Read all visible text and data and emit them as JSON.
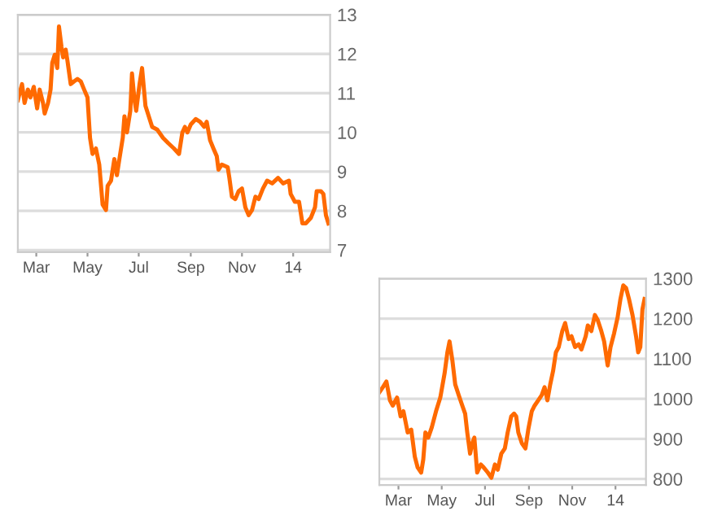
{
  "chart_data": [
    {
      "type": "line",
      "x": [
        "2013-02-07",
        "2013-02-12",
        "2013-02-15",
        "2013-02-19",
        "2013-02-22",
        "2013-02-26",
        "2013-03-02",
        "2013-03-05",
        "2013-03-09",
        "2013-03-11",
        "2013-03-15",
        "2013-03-18",
        "2013-03-20",
        "2013-03-23",
        "2013-03-26",
        "2013-03-28",
        "2013-03-31",
        "2013-04-02",
        "2013-04-05",
        "2013-04-07",
        "2013-04-11",
        "2013-04-15",
        "2013-04-19",
        "2013-04-23",
        "2013-04-27",
        "2013-05-01",
        "2013-05-04",
        "2013-05-07",
        "2013-05-11",
        "2013-05-15",
        "2013-05-19",
        "2013-05-23",
        "2013-05-25",
        "2013-05-29",
        "2013-06-02",
        "2013-06-05",
        "2013-06-08",
        "2013-06-12",
        "2013-06-14",
        "2013-06-17",
        "2013-06-21",
        "2013-06-23",
        "2013-06-26",
        "2013-06-28",
        "2013-07-02",
        "2013-07-05",
        "2013-07-09",
        "2013-07-13",
        "2013-07-17",
        "2013-07-23",
        "2013-07-30",
        "2013-08-05",
        "2013-08-12",
        "2013-08-18",
        "2013-08-22",
        "2013-08-25",
        "2013-08-28",
        "2013-09-01",
        "2013-09-07",
        "2013-09-12",
        "2013-09-17",
        "2013-09-20",
        "2013-09-24",
        "2013-09-28",
        "2013-10-02",
        "2013-10-04",
        "2013-10-08",
        "2013-10-15",
        "2013-10-17",
        "2013-10-20",
        "2013-10-24",
        "2013-10-28",
        "2013-11-01",
        "2013-11-05",
        "2013-11-09",
        "2013-11-13",
        "2013-11-17",
        "2013-11-21",
        "2013-11-26",
        "2013-12-01",
        "2013-12-07",
        "2013-12-14",
        "2013-12-20",
        "2013-12-27",
        "2013-12-29",
        "2014-01-03",
        "2014-01-08",
        "2014-01-12",
        "2014-01-16",
        "2014-01-22",
        "2014-01-27",
        "2014-01-29",
        "2014-02-03",
        "2014-02-06",
        "2014-02-09",
        "2014-02-12"
      ],
      "series": [
        {
          "color": "#ff6a00",
          "values": [
            10.82,
            11.23,
            10.75,
            11.09,
            10.89,
            11.16,
            10.61,
            11.09,
            10.75,
            10.48,
            10.75,
            11.09,
            11.77,
            11.98,
            11.64,
            12.7,
            12.18,
            11.91,
            12.11,
            11.84,
            11.23,
            11.3,
            11.36,
            11.3,
            11.09,
            10.89,
            9.86,
            9.45,
            9.59,
            9.18,
            8.16,
            8.02,
            8.64,
            8.77,
            9.32,
            8.91,
            9.32,
            9.86,
            10.41,
            10.0,
            10.55,
            11.5,
            10.82,
            10.55,
            11.23,
            11.64,
            10.68,
            10.41,
            10.14,
            10.07,
            9.86,
            9.73,
            9.59,
            9.45,
            10.0,
            10.14,
            10.0,
            10.2,
            10.34,
            10.27,
            10.14,
            10.27,
            9.8,
            9.59,
            9.39,
            9.05,
            9.18,
            9.11,
            8.84,
            8.36,
            8.3,
            8.5,
            8.57,
            8.09,
            7.89,
            8.02,
            8.36,
            8.3,
            8.57,
            8.77,
            8.7,
            8.84,
            8.7,
            8.77,
            8.43,
            8.23,
            8.23,
            7.68,
            7.68,
            7.82,
            8.09,
            8.5,
            8.5,
            8.43,
            7.89,
            7.68
          ]
        }
      ],
      "xlim": [
        "2013-02-07",
        "2014-02-14"
      ],
      "xticks": [
        {
          "value": "2013-03-01",
          "label": "Mar"
        },
        {
          "value": "2013-05-01",
          "label": "May"
        },
        {
          "value": "2013-07-01",
          "label": "Jul"
        },
        {
          "value": "2013-09-01",
          "label": "Sep"
        },
        {
          "value": "2013-11-01",
          "label": "Nov"
        },
        {
          "value": "2014-01-01",
          "label": "14"
        }
      ],
      "ylim": [
        6.95,
        13.0
      ],
      "yticks": [
        7,
        8,
        9,
        10,
        11,
        12,
        13
      ],
      "grid": "y",
      "line_style": "solid"
    },
    {
      "type": "line",
      "x": [
        "2013-02-02",
        "2013-02-07",
        "2013-02-12",
        "2013-02-17",
        "2013-02-21",
        "2013-02-27",
        "2013-03-04",
        "2013-03-08",
        "2013-03-14",
        "2013-03-19",
        "2013-03-24",
        "2013-03-28",
        "2013-04-02",
        "2013-04-05",
        "2013-04-08",
        "2013-04-12",
        "2013-04-17",
        "2013-04-23",
        "2013-04-29",
        "2013-05-05",
        "2013-05-09",
        "2013-05-12",
        "2013-05-16",
        "2013-05-20",
        "2013-05-25",
        "2013-05-30",
        "2013-06-03",
        "2013-06-06",
        "2013-06-10",
        "2013-06-13",
        "2013-06-16",
        "2013-06-20",
        "2013-06-25",
        "2013-06-29",
        "2013-07-05",
        "2013-07-10",
        "2013-07-15",
        "2013-07-19",
        "2013-07-24",
        "2013-07-29",
        "2013-08-02",
        "2013-08-07",
        "2013-08-11",
        "2013-08-14",
        "2013-08-17",
        "2013-08-22",
        "2013-08-27",
        "2013-08-31",
        "2013-09-05",
        "2013-09-09",
        "2013-09-14",
        "2013-09-19",
        "2013-09-23",
        "2013-09-27",
        "2013-10-01",
        "2013-10-05",
        "2013-10-09",
        "2013-10-13",
        "2013-10-18",
        "2013-10-22",
        "2013-10-27",
        "2013-10-31",
        "2013-11-05",
        "2013-11-10",
        "2013-11-14",
        "2013-11-20",
        "2013-11-23",
        "2013-11-28",
        "2013-12-03",
        "2013-12-07",
        "2013-12-12",
        "2013-12-16",
        "2013-12-21",
        "2013-12-25",
        "2013-12-30",
        "2014-01-04",
        "2014-01-08",
        "2014-01-12",
        "2014-01-16",
        "2014-01-20",
        "2014-01-25",
        "2014-01-30",
        "2014-02-02",
        "2014-02-05",
        "2014-02-08",
        "2014-02-11"
      ],
      "series": [
        {
          "color": "#ff6a00",
          "values": [
            1016,
            1029,
            1043,
            996,
            983,
            1003,
            956,
            969,
            916,
            923,
            856,
            829,
            816,
            849,
            916,
            903,
            929,
            969,
            1003,
            1063,
            1116,
            1143,
            1096,
            1036,
            1009,
            983,
            963,
            916,
            863,
            889,
            903,
            816,
            836,
            829,
            816,
            803,
            836,
            823,
            863,
            876,
            916,
            956,
            963,
            956,
            916,
            889,
            876,
            923,
            969,
            983,
            996,
            1009,
            1029,
            996,
            1036,
            1069,
            1116,
            1129,
            1169,
            1189,
            1149,
            1156,
            1129,
            1136,
            1123,
            1156,
            1183,
            1169,
            1209,
            1196,
            1169,
            1143,
            1083,
            1129,
            1163,
            1203,
            1249,
            1283,
            1276,
            1249,
            1209,
            1156,
            1116,
            1129,
            1223,
            1249
          ]
        }
      ],
      "xlim": [
        "2013-02-02",
        "2014-02-13"
      ],
      "xticks": [
        {
          "value": "2013-03-01",
          "label": "Mar"
        },
        {
          "value": "2013-05-01",
          "label": "May"
        },
        {
          "value": "2013-07-01",
          "label": "Jul"
        },
        {
          "value": "2013-09-01",
          "label": "Sep"
        },
        {
          "value": "2013-11-01",
          "label": "Nov"
        },
        {
          "value": "2014-01-01",
          "label": "14"
        }
      ],
      "ylim": [
        785,
        1300
      ],
      "yticks": [
        800,
        900,
        1000,
        1100,
        1200,
        1300
      ],
      "grid": "y",
      "line_style": "solid"
    }
  ]
}
